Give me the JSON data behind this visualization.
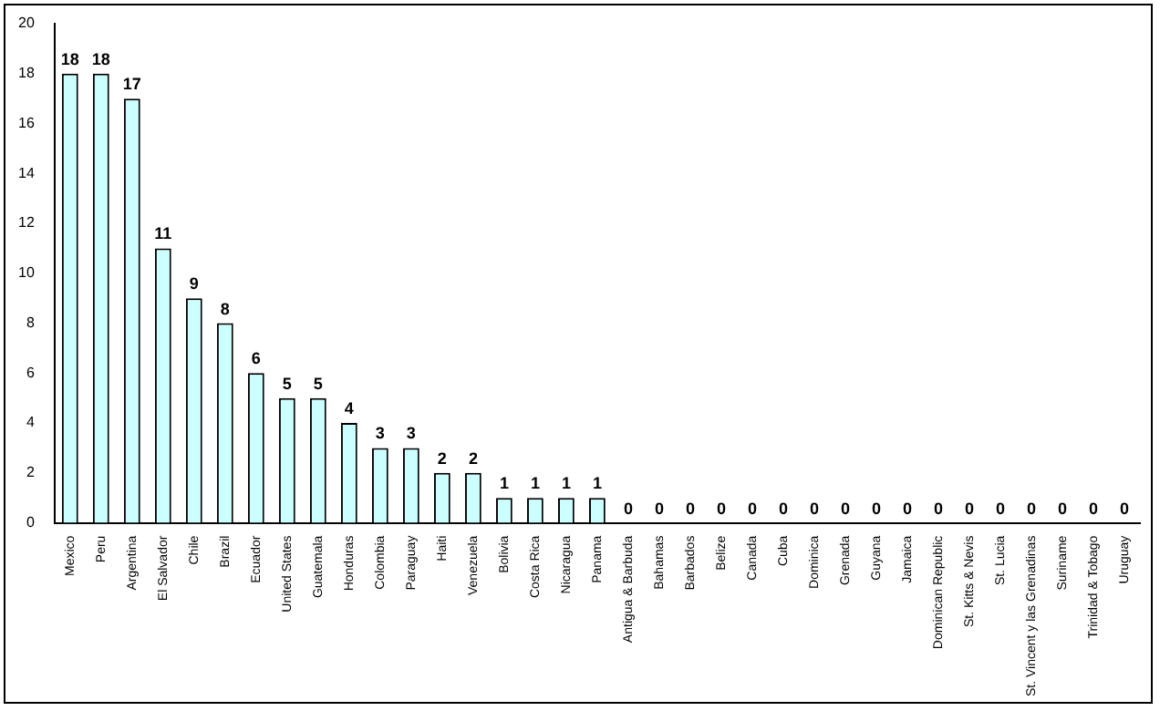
{
  "chart_data": {
    "type": "bar",
    "categories": [
      "Mexico",
      "Peru",
      "Argentina",
      "El Salvador",
      "Chile",
      "Brazil",
      "Ecuador",
      "United States",
      "Guatemala",
      "Honduras",
      "Colombia",
      "Paraguay",
      "Haiti",
      "Venezuela",
      "Bolivia",
      "Costa Rica",
      "Nicaragua",
      "Panama",
      "Antigua & Barbuda",
      "Bahamas",
      "Barbados",
      "Belize",
      "Canada",
      "Cuba",
      "Dominica",
      "Grenada",
      "Guyana",
      "Jamaica",
      "Dominican Republic",
      "St. Kitts & Nevis",
      "St. Lucia",
      "St. Vincent y las Grenadinas",
      "Suriname",
      "Trinidad & Tobago",
      "Uruguay"
    ],
    "values": [
      18,
      18,
      17,
      11,
      9,
      8,
      6,
      5,
      5,
      4,
      3,
      3,
      2,
      2,
      1,
      1,
      1,
      1,
      0,
      0,
      0,
      0,
      0,
      0,
      0,
      0,
      0,
      0,
      0,
      0,
      0,
      0,
      0,
      0,
      0
    ],
    "color": "#ccffff",
    "ylim": [
      0,
      20
    ],
    "yticks": [
      0,
      2,
      4,
      6,
      8,
      10,
      12,
      14,
      16,
      18,
      20
    ],
    "grid": false,
    "legend": false,
    "data_labels": true
  }
}
